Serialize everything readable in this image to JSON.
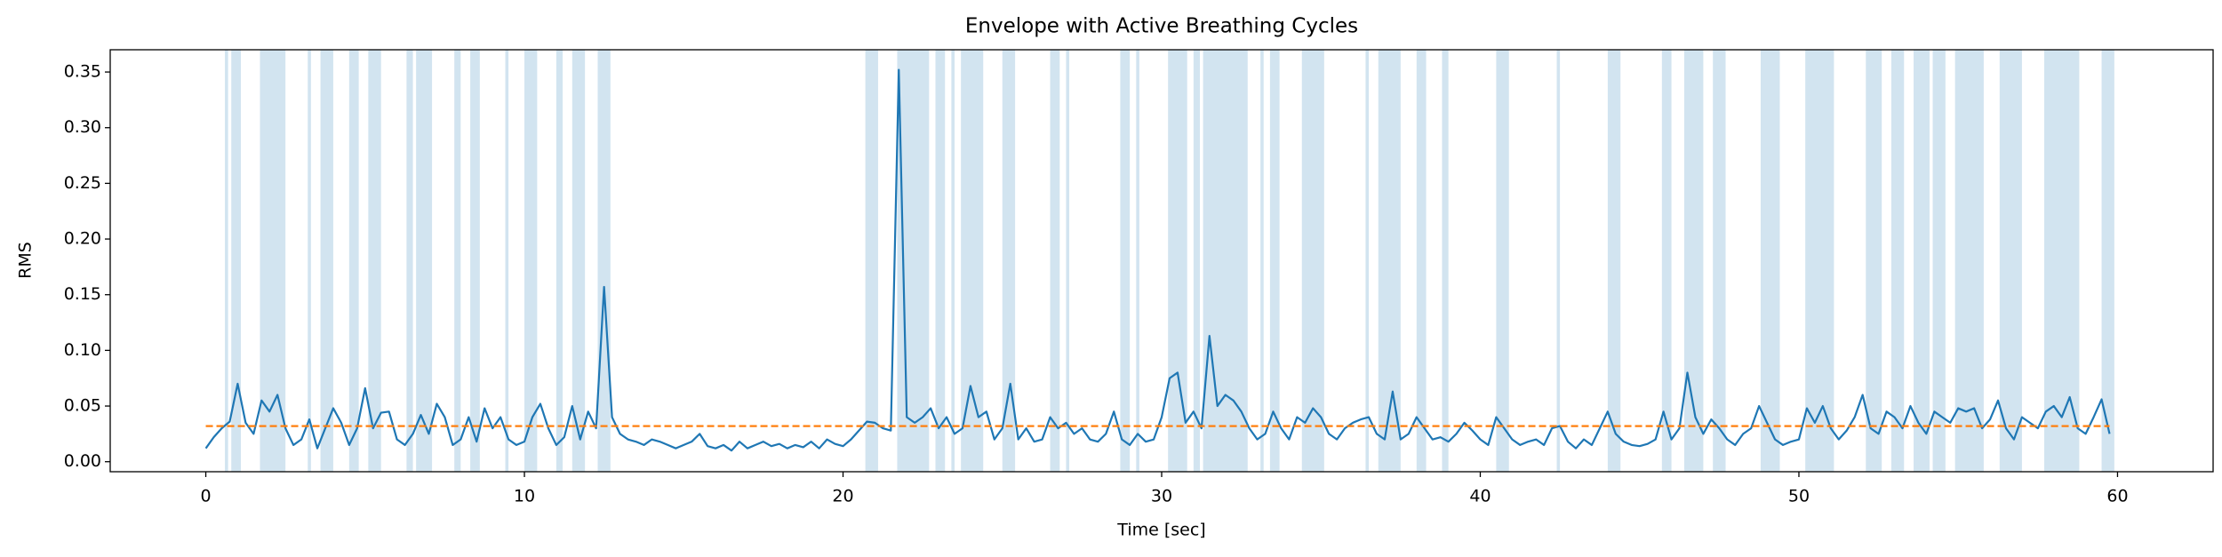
{
  "chart_data": {
    "type": "line",
    "title": "Envelope with Active Breathing Cycles",
    "xlabel": "Time [sec]",
    "ylabel": "RMS",
    "color": "#1f77b4",
    "threshold": 0.032,
    "threshold_color": "#ff7f0e",
    "span_color": "#1f77b4",
    "xlim": [
      -3,
      63
    ],
    "xticks": [
      0,
      10,
      20,
      30,
      40,
      50,
      60
    ],
    "ylim": [
      -0.009,
      0.37
    ],
    "yticks": [
      {
        "value": 0,
        "label": "0.00"
      },
      0.05,
      {
        "value": 0.1,
        "label": "0.10"
      },
      0.15,
      {
        "value": 0.2,
        "label": "0.20"
      },
      0.25,
      {
        "value": 0.3,
        "label": "0.30"
      },
      0.35
    ],
    "spans": [
      [
        0.6,
        0.7
      ],
      [
        0.8,
        1.1
      ],
      [
        1.7,
        2.5
      ],
      [
        3.2,
        3.3
      ],
      [
        3.6,
        4.0
      ],
      [
        4.5,
        4.8
      ],
      [
        5.1,
        5.5
      ],
      [
        6.3,
        6.5
      ],
      [
        6.6,
        7.1
      ],
      [
        7.8,
        8.0
      ],
      [
        8.3,
        8.6
      ],
      [
        9.4,
        9.5
      ],
      [
        10.0,
        10.4
      ],
      [
        11.0,
        11.2
      ],
      [
        11.5,
        11.9
      ],
      [
        12.3,
        12.7
      ],
      [
        20.7,
        21.1
      ],
      [
        21.7,
        22.7
      ],
      [
        22.9,
        23.2
      ],
      [
        23.4,
        23.5
      ],
      [
        23.7,
        24.4
      ],
      [
        25.0,
        25.4
      ],
      [
        26.5,
        26.8
      ],
      [
        27.0,
        27.1
      ],
      [
        28.7,
        29.0
      ],
      [
        29.2,
        29.3
      ],
      [
        30.2,
        30.8
      ],
      [
        31.0,
        31.2
      ],
      [
        31.3,
        32.7
      ],
      [
        33.1,
        33.2
      ],
      [
        33.4,
        33.7
      ],
      [
        34.4,
        35.1
      ],
      [
        36.4,
        36.5
      ],
      [
        36.8,
        37.5
      ],
      [
        38.0,
        38.3
      ],
      [
        38.8,
        39.0
      ],
      [
        40.5,
        40.9
      ],
      [
        42.4,
        42.5
      ],
      [
        44.0,
        44.4
      ],
      [
        45.7,
        46.0
      ],
      [
        46.4,
        47.0
      ],
      [
        47.3,
        47.7
      ],
      [
        48.8,
        49.4
      ],
      [
        50.2,
        51.1
      ],
      [
        52.1,
        52.6
      ],
      [
        52.9,
        53.3
      ],
      [
        53.6,
        54.1
      ],
      [
        54.2,
        54.6
      ],
      [
        54.9,
        55.8
      ],
      [
        56.3,
        57.0
      ],
      [
        57.7,
        58.8
      ],
      [
        59.5,
        59.9
      ]
    ],
    "x": [
      0,
      0.25,
      0.5,
      0.75,
      1,
      1.25,
      1.5,
      1.75,
      2,
      2.25,
      2.5,
      2.75,
      3,
      3.25,
      3.5,
      3.75,
      4,
      4.25,
      4.5,
      4.75,
      5,
      5.25,
      5.5,
      5.75,
      6,
      6.25,
      6.5,
      6.75,
      7,
      7.25,
      7.5,
      7.75,
      8,
      8.25,
      8.5,
      8.75,
      9,
      9.25,
      9.5,
      9.75,
      10,
      10.25,
      10.5,
      10.75,
      11,
      11.25,
      11.5,
      11.75,
      12,
      12.25,
      12.5,
      12.75,
      13,
      13.25,
      13.5,
      13.75,
      14,
      14.25,
      14.5,
      14.75,
      15,
      15.25,
      15.5,
      15.75,
      16,
      16.25,
      16.5,
      16.75,
      17,
      17.25,
      17.5,
      17.75,
      18,
      18.25,
      18.5,
      18.75,
      19,
      19.25,
      19.5,
      19.75,
      20,
      20.25,
      20.5,
      20.75,
      21,
      21.25,
      21.5,
      21.75,
      22,
      22.25,
      22.5,
      22.75,
      23,
      23.25,
      23.5,
      23.75,
      24,
      24.25,
      24.5,
      24.75,
      25,
      25.25,
      25.5,
      25.75,
      26,
      26.25,
      26.5,
      26.75,
      27,
      27.25,
      27.5,
      27.75,
      28,
      28.25,
      28.5,
      28.75,
      29,
      29.25,
      29.5,
      29.75,
      30,
      30.25,
      30.5,
      30.75,
      31,
      31.25,
      31.5,
      31.75,
      32,
      32.25,
      32.5,
      32.75,
      33,
      33.25,
      33.5,
      33.75,
      34,
      34.25,
      34.5,
      34.75,
      35,
      35.25,
      35.5,
      35.75,
      36,
      36.25,
      36.5,
      36.75,
      37,
      37.25,
      37.5,
      37.75,
      38,
      38.25,
      38.5,
      38.75,
      39,
      39.25,
      39.5,
      39.75,
      40,
      40.25,
      40.5,
      40.75,
      41,
      41.25,
      41.5,
      41.75,
      42,
      42.25,
      42.5,
      42.75,
      43,
      43.25,
      43.5,
      43.75,
      44,
      44.25,
      44.5,
      44.75,
      45,
      45.25,
      45.5,
      45.75,
      46,
      46.25,
      46.5,
      46.75,
      47,
      47.25,
      47.5,
      47.75,
      48,
      48.25,
      48.5,
      48.75,
      49,
      49.25,
      49.5,
      49.75,
      50,
      50.25,
      50.5,
      50.75,
      51,
      51.25,
      51.5,
      51.75,
      52,
      52.25,
      52.5,
      52.75,
      53,
      53.25,
      53.5,
      53.75,
      54,
      54.25,
      54.5,
      54.75,
      55,
      55.25,
      55.5,
      55.75,
      56,
      56.25,
      56.5,
      56.75,
      57,
      57.25,
      57.5,
      57.75,
      58,
      58.25,
      58.5,
      58.75,
      59,
      59.25,
      59.5,
      59.75
    ],
    "values": [
      0.012,
      0.022,
      0.03,
      0.036,
      0.07,
      0.035,
      0.025,
      0.055,
      0.045,
      0.06,
      0.03,
      0.015,
      0.02,
      0.038,
      0.012,
      0.03,
      0.048,
      0.035,
      0.015,
      0.03,
      0.066,
      0.03,
      0.044,
      0.045,
      0.02,
      0.015,
      0.025,
      0.042,
      0.025,
      0.052,
      0.04,
      0.015,
      0.02,
      0.04,
      0.018,
      0.048,
      0.03,
      0.04,
      0.02,
      0.015,
      0.018,
      0.04,
      0.052,
      0.03,
      0.015,
      0.022,
      0.05,
      0.02,
      0.045,
      0.03,
      0.157,
      0.04,
      0.025,
      0.02,
      0.018,
      0.015,
      0.02,
      0.018,
      0.015,
      0.012,
      0.015,
      0.018,
      0.025,
      0.014,
      0.012,
      0.015,
      0.01,
      0.018,
      0.012,
      0.015,
      0.018,
      0.014,
      0.016,
      0.012,
      0.015,
      0.013,
      0.018,
      0.012,
      0.02,
      0.016,
      0.014,
      0.02,
      0.028,
      0.036,
      0.035,
      0.03,
      0.028,
      0.352,
      0.04,
      0.035,
      0.04,
      0.048,
      0.03,
      0.04,
      0.025,
      0.03,
      0.068,
      0.04,
      0.045,
      0.02,
      0.03,
      0.07,
      0.02,
      0.03,
      0.018,
      0.02,
      0.04,
      0.03,
      0.035,
      0.025,
      0.03,
      0.02,
      0.018,
      0.025,
      0.045,
      0.02,
      0.015,
      0.025,
      0.018,
      0.02,
      0.04,
      0.075,
      0.08,
      0.035,
      0.045,
      0.03,
      0.113,
      0.05,
      0.06,
      0.055,
      0.045,
      0.03,
      0.02,
      0.025,
      0.045,
      0.03,
      0.02,
      0.04,
      0.035,
      0.048,
      0.04,
      0.025,
      0.02,
      0.03,
      0.035,
      0.038,
      0.04,
      0.025,
      0.02,
      0.063,
      0.02,
      0.025,
      0.04,
      0.03,
      0.02,
      0.022,
      0.018,
      0.025,
      0.035,
      0.028,
      0.02,
      0.015,
      0.04,
      0.03,
      0.02,
      0.015,
      0.018,
      0.02,
      0.015,
      0.03,
      0.032,
      0.018,
      0.012,
      0.02,
      0.015,
      0.03,
      0.045,
      0.025,
      0.018,
      0.015,
      0.014,
      0.016,
      0.02,
      0.045,
      0.02,
      0.03,
      0.08,
      0.04,
      0.025,
      0.038,
      0.03,
      0.02,
      0.015,
      0.025,
      0.03,
      0.05,
      0.035,
      0.02,
      0.015,
      0.018,
      0.02,
      0.048,
      0.035,
      0.05,
      0.03,
      0.02,
      0.028,
      0.04,
      0.06,
      0.03,
      0.025,
      0.045,
      0.04,
      0.03,
      0.05,
      0.035,
      0.025,
      0.045,
      0.04,
      0.035,
      0.048,
      0.045,
      0.048,
      0.03,
      0.038,
      0.055,
      0.03,
      0.02,
      0.04,
      0.035,
      0.03,
      0.045,
      0.05,
      0.04,
      0.058,
      0.03,
      0.025,
      0.04,
      0.056,
      0.025
    ]
  }
}
